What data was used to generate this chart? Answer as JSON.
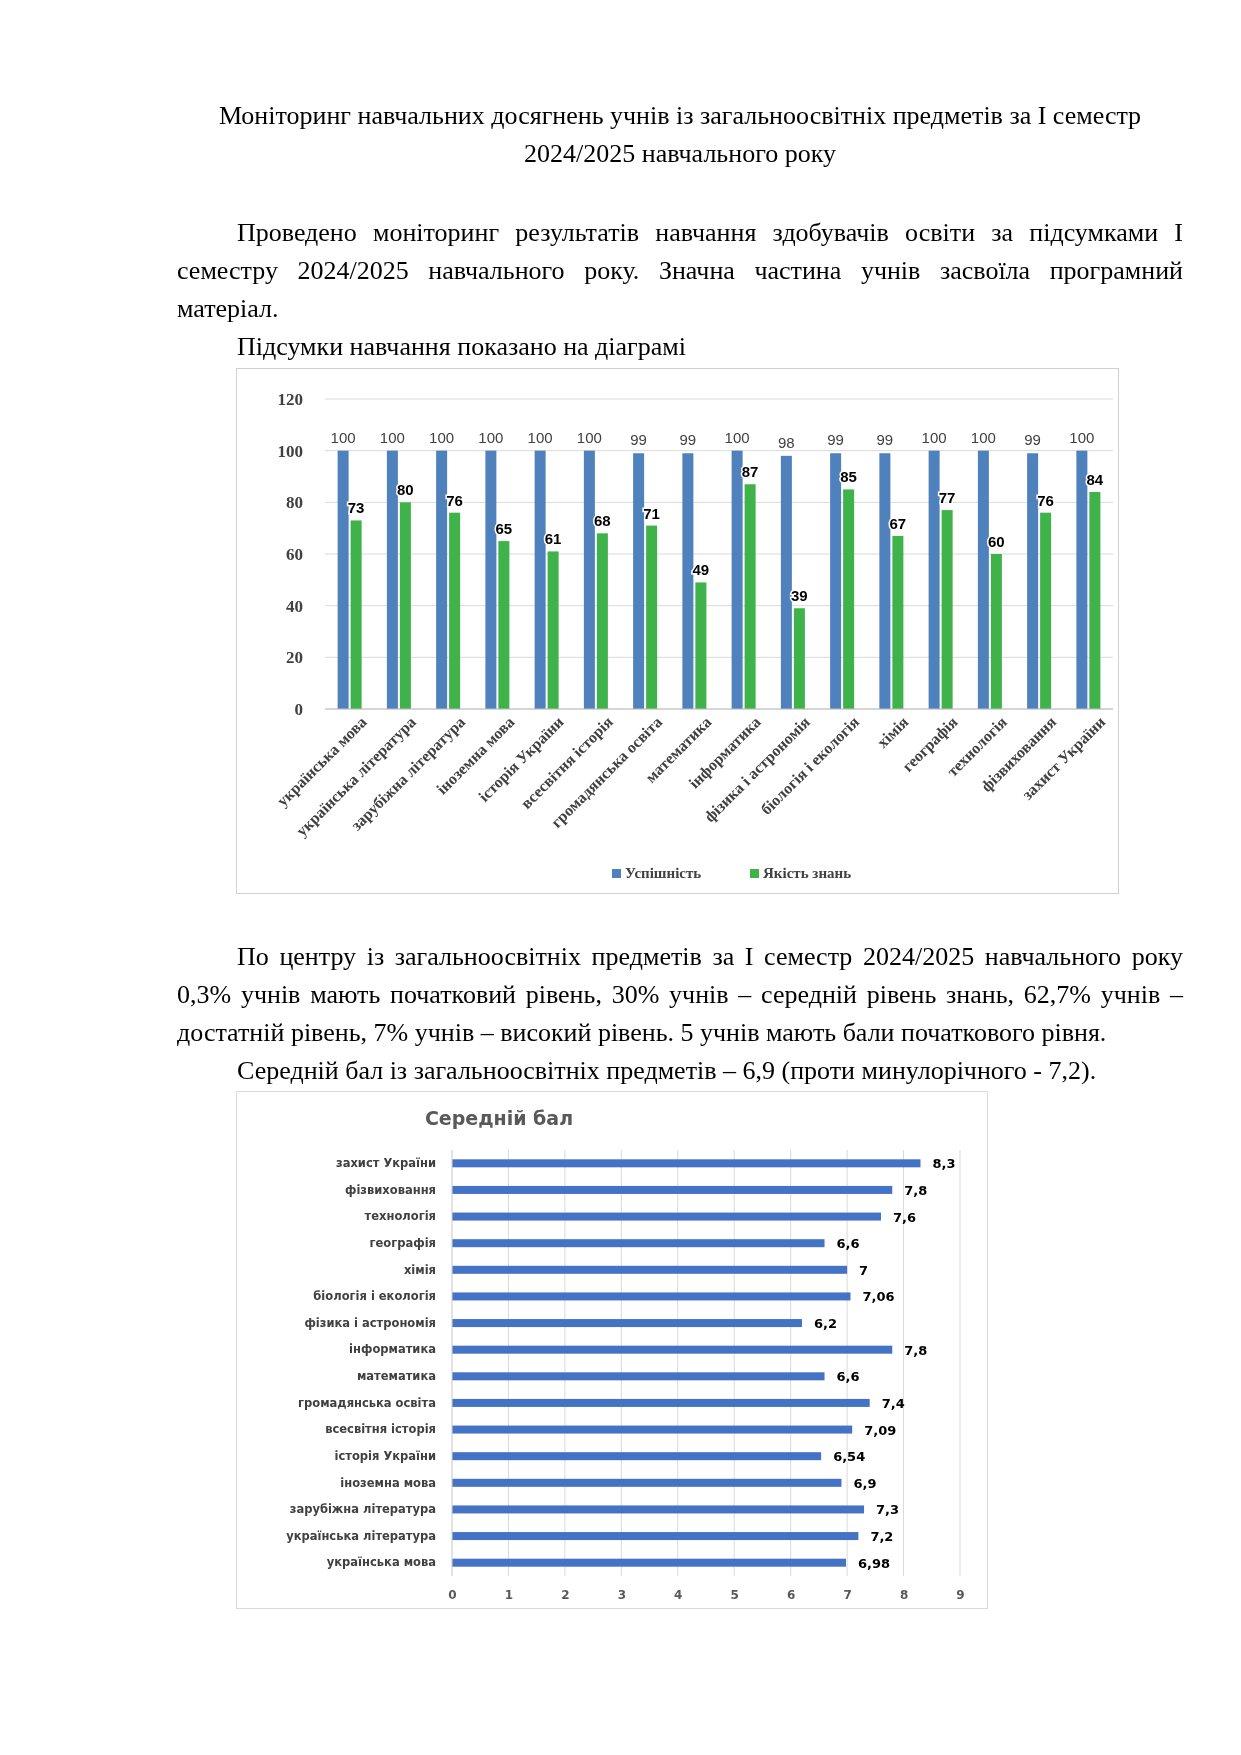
{
  "chart_data": [
    {
      "type": "bar",
      "title": "Моніторинг навчальних досягнень учнів із загальноосвітніх предметів за І семестр 2024/2025 навчального року",
      "annotations": [
        "Проведено моніторинг результатів навчання здобувачів освіти за підсумками І семестру 2024/2025 навчального року. Значна частина учнів засвоїла програмний матеріал.",
        "Підсумки навчання показано на діаграмі"
      ],
      "categories": [
        "українська мова",
        "українська література",
        "зарубіжна література",
        "іноземна мова",
        "історія України",
        "всесвітня історія",
        "громадянська освіта",
        "математика",
        "інформатика",
        "фізика і астрономія",
        "біологія і екологія",
        "хімія",
        "географія",
        "технологія",
        "фізвиховання",
        "захист України"
      ],
      "series": [
        {
          "name": "Успішність",
          "color": "#4f81bd",
          "values": [
            100,
            100,
            100,
            100,
            100,
            100,
            99,
            99,
            100,
            98,
            99,
            99,
            100,
            100,
            99,
            100
          ]
        },
        {
          "name": "Якість знань",
          "color": "#3fb24a",
          "values": [
            73,
            80,
            76,
            65,
            61,
            68,
            71,
            49,
            87,
            39,
            85,
            67,
            77,
            60,
            76,
            84
          ]
        }
      ],
      "ylim": [
        0,
        120
      ],
      "yticks": [
        0,
        20,
        40,
        60,
        80,
        100,
        120
      ],
      "grid": "y",
      "legend": "bottom",
      "data_labels": true
    },
    {
      "type": "bar",
      "orientation": "horizontal",
      "title": "Середній бал",
      "annotations": [
        "По центру із загальноосвітніх предметів за І семестр 2024/2025 навчального року 0,3% учнів мають початковий рівень, 30% учнів – середній рівень знань, 62,7% учнів – достатній рівень, 7% учнів – високий рівень. 5 учнів мають бали початкового рівня.",
        "Середній бал із загальноосвітніх предметів – 6,9 (проти минулорічного - 7,2)."
      ],
      "categories": [
        "захист України",
        "фізвиховання",
        "технологія",
        "географія",
        "хімія",
        "біологія і екологія",
        "фізика і астрономія",
        "інформатика",
        "математика",
        "громадянська освіта",
        "всесвітня історія",
        "історія України",
        "іноземна мова",
        "зарубіжна література",
        "українська література",
        "українська мова"
      ],
      "values": [
        8.3,
        7.8,
        7.6,
        6.6,
        7,
        7.06,
        6.2,
        7.8,
        6.6,
        7.4,
        7.09,
        6.54,
        6.9,
        7.3,
        7.2,
        6.98
      ],
      "value_labels": [
        "8,3",
        "7,8",
        "7,6",
        "6,6",
        "7",
        "7,06",
        "6,2",
        "7,8",
        "6,6",
        "7,4",
        "7,09",
        "6,54",
        "6,9",
        "7,3",
        "7,2",
        "6,98"
      ],
      "color": "#4472c4",
      "xlim": [
        0,
        9
      ],
      "xticks": [
        0,
        1,
        2,
        3,
        4,
        5,
        6,
        7,
        8,
        9
      ],
      "grid": "x"
    }
  ]
}
